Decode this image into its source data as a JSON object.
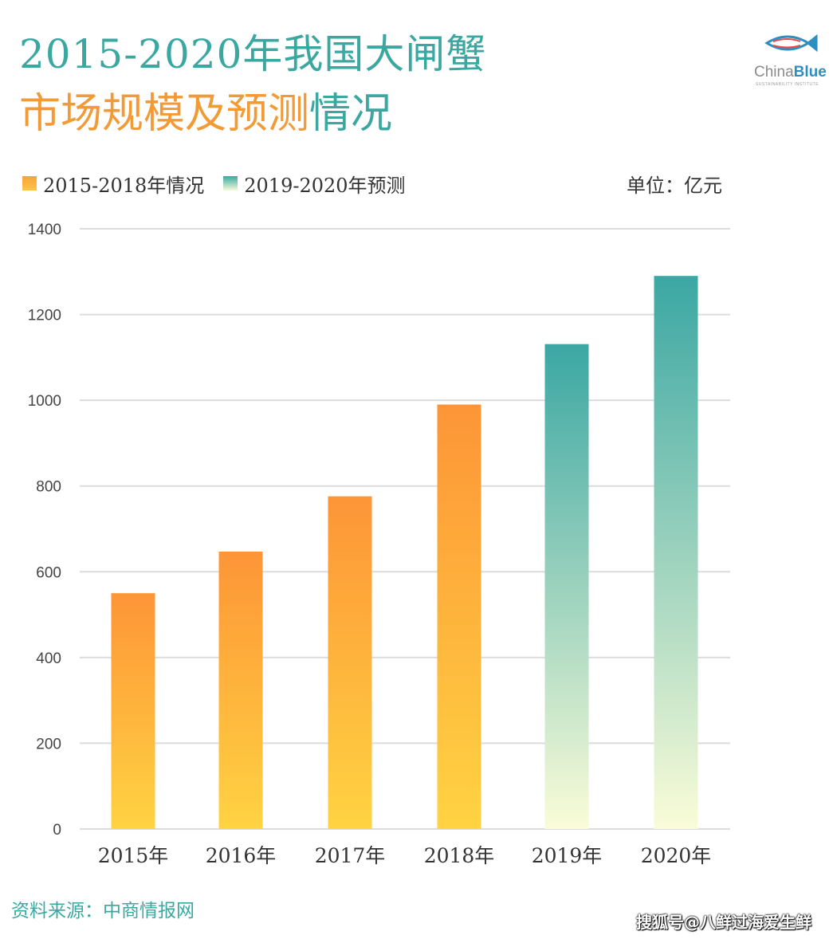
{
  "title_line1": "2015-2020年我国大闸蟹",
  "title_line2_highlight": "市场规模及预测",
  "title_line2_rest": "情况",
  "logo": {
    "brand_light": "China",
    "brand_bold": "Blue",
    "tagline": "SUSTAINABILITY INSTITUTE"
  },
  "legend": {
    "actual": "2015-2018年情况",
    "forecast": "2019-2020年预测"
  },
  "unit": "单位：亿元",
  "source": "资料来源：中商情报网",
  "watermark": "搜狐号@八鲜过海爱生鲜",
  "colors": {
    "actual_top": "#fd9537",
    "actual_bottom": "#ffd342",
    "forecast_top": "#3ba7a3",
    "forecast_bottom": "#fafcd8",
    "title_teal": "#3aa8a0",
    "title_orange": "#f29a36"
  },
  "chart_data": {
    "type": "bar",
    "categories": [
      "2015年",
      "2016年",
      "2017年",
      "2018年",
      "2019年",
      "2020年"
    ],
    "values": [
      550,
      647,
      776,
      990,
      1131,
      1290
    ],
    "series_kind": [
      "actual",
      "actual",
      "actual",
      "actual",
      "forecast",
      "forecast"
    ],
    "ylim": [
      0,
      1400
    ],
    "yticks": [
      "0",
      "200",
      "400",
      "600",
      "800",
      "1000",
      "1200",
      "1400"
    ],
    "grid": true,
    "xlabel": "",
    "ylabel": ""
  }
}
